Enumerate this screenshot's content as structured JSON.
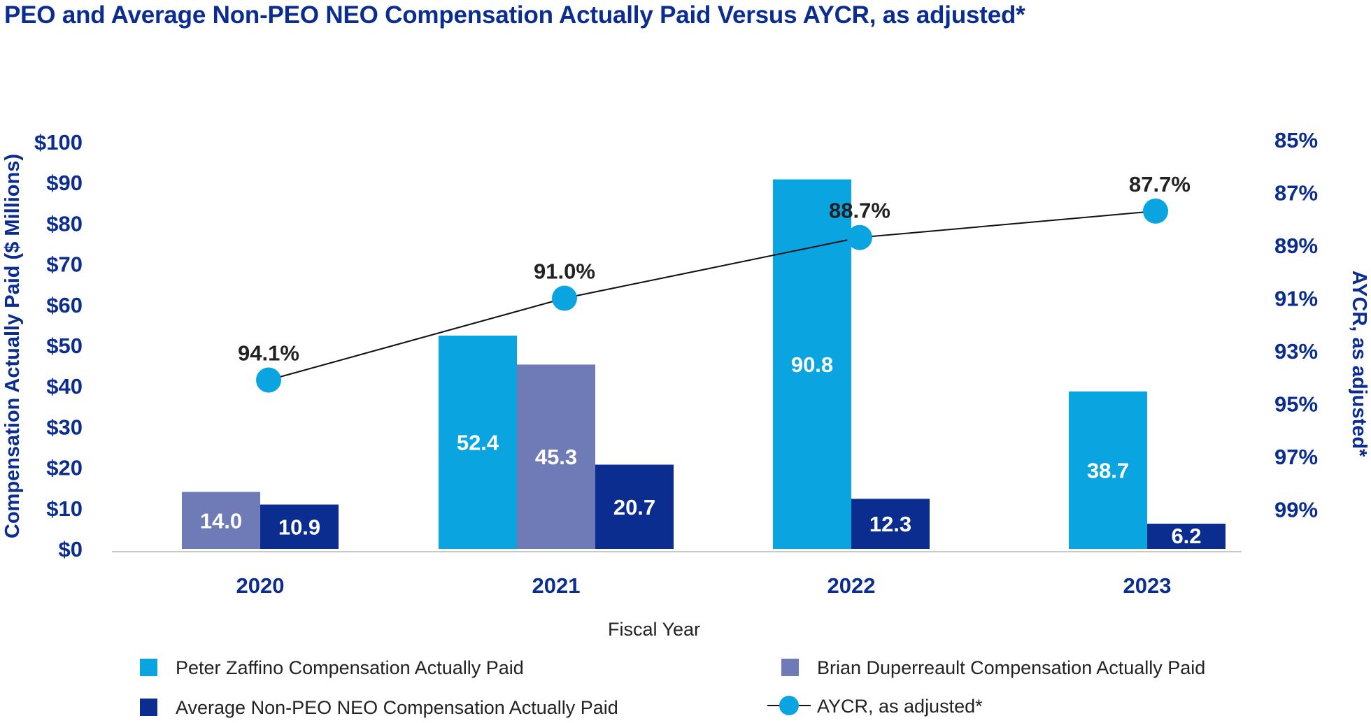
{
  "chart_data": {
    "type": "bar",
    "title": "PEO and Average Non-PEO NEO Compensation Actually Paid Versus AYCR, as adjusted*",
    "xlabel": "Fiscal Year",
    "ylabel": "Compensation Actually Paid ($ Millions)",
    "y2label": "AYCR, as adjusted*",
    "categories": [
      "2020",
      "2021",
      "2022",
      "2023"
    ],
    "ylim": [
      0,
      100
    ],
    "yticks": [
      "$0",
      "$10",
      "$20",
      "$30",
      "$40",
      "$50",
      "$60",
      "$70",
      "$80",
      "$90",
      "$100"
    ],
    "y2lim": [
      85,
      101
    ],
    "y2ticks": [
      "85%",
      "87%",
      "89%",
      "91%",
      "93%",
      "95%",
      "97%",
      "99%"
    ],
    "y2tick_values": [
      85,
      87,
      89,
      91,
      93,
      95,
      97,
      99
    ],
    "series": [
      {
        "name": "Peter Zaffino Compensation Actually Paid",
        "color": "#0aa5e0",
        "values": [
          null,
          52.4,
          90.8,
          38.7
        ],
        "labels": [
          "",
          "52.4",
          "90.8",
          "38.7"
        ]
      },
      {
        "name": "Brian Duperreault Compensation Actually Paid",
        "color": "#6f7bb7",
        "values": [
          14.0,
          45.3,
          null,
          null
        ],
        "labels": [
          "14.0",
          "45.3",
          "",
          ""
        ]
      },
      {
        "name": "Average Non-PEO NEO Compensation Actually Paid",
        "color": "#0b2d8f",
        "values": [
          10.9,
          20.7,
          12.3,
          6.2
        ],
        "labels": [
          "10.9",
          "20.7",
          "12.3",
          "6.2"
        ]
      }
    ],
    "line": {
      "name": "AYCR, as adjusted*",
      "color": "#0aa5e0",
      "values": [
        94.1,
        91.0,
        88.7,
        87.7
      ],
      "labels": [
        "94.1%",
        "91.0%",
        "88.7%",
        "87.7%"
      ]
    },
    "legend": "bottom"
  }
}
